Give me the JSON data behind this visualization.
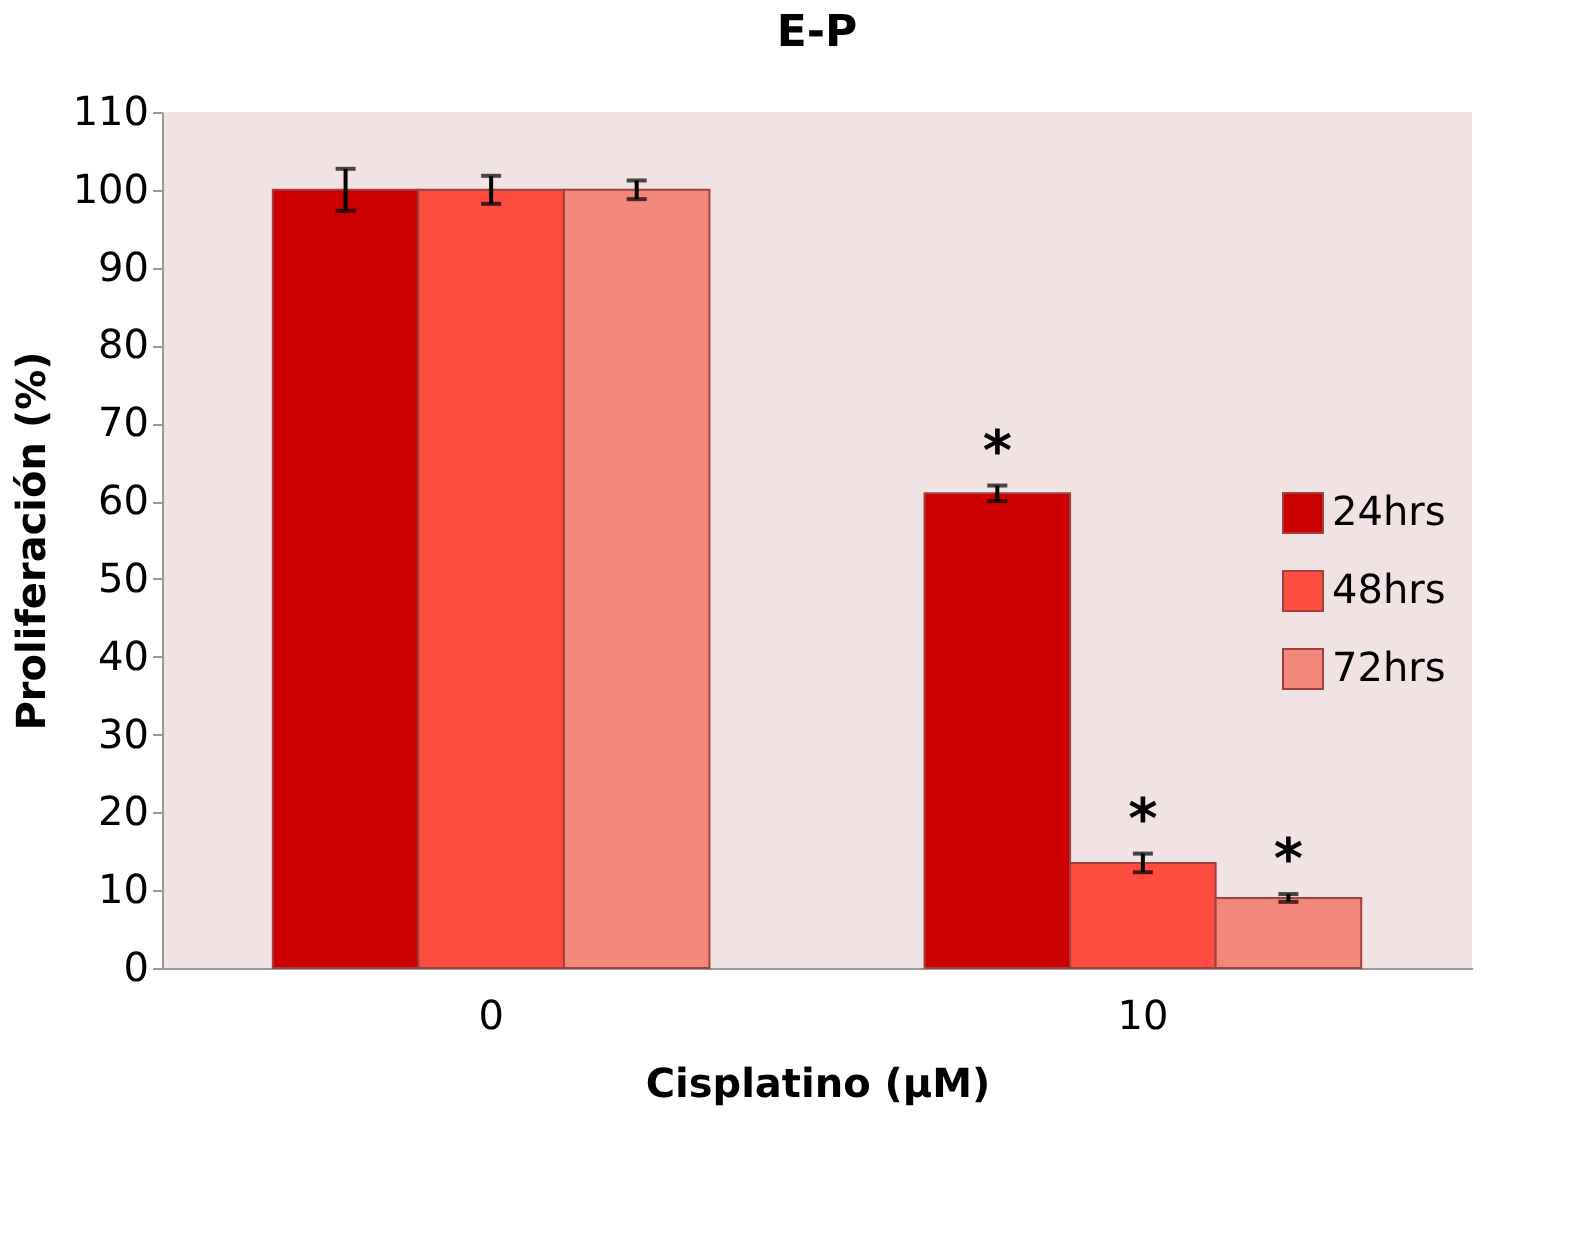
{
  "chart_data": {
    "type": "bar",
    "title": "E-P",
    "xlabel": "Cisplatino (µM)",
    "ylabel": "Proliferación (%)",
    "categories": [
      "0",
      "10"
    ],
    "series": [
      {
        "name": "24hrs",
        "color": "#cc0000",
        "values": [
          100,
          61
        ],
        "errors": [
          2.7,
          1
        ]
      },
      {
        "name": "48hrs",
        "color": "#ff4c40",
        "values": [
          100,
          13.5
        ],
        "errors": [
          1.8,
          1.2
        ]
      },
      {
        "name": "72hrs",
        "color": "#f4877c",
        "values": [
          100,
          9
        ],
        "errors": [
          1.2,
          0.5
        ]
      }
    ],
    "ylim": [
      0,
      110
    ],
    "yticks": [
      0,
      10,
      20,
      30,
      40,
      50,
      60,
      70,
      80,
      90,
      100,
      110
    ],
    "grid": false,
    "legend": "right",
    "annotations": [
      "*",
      "*",
      "*"
    ]
  }
}
